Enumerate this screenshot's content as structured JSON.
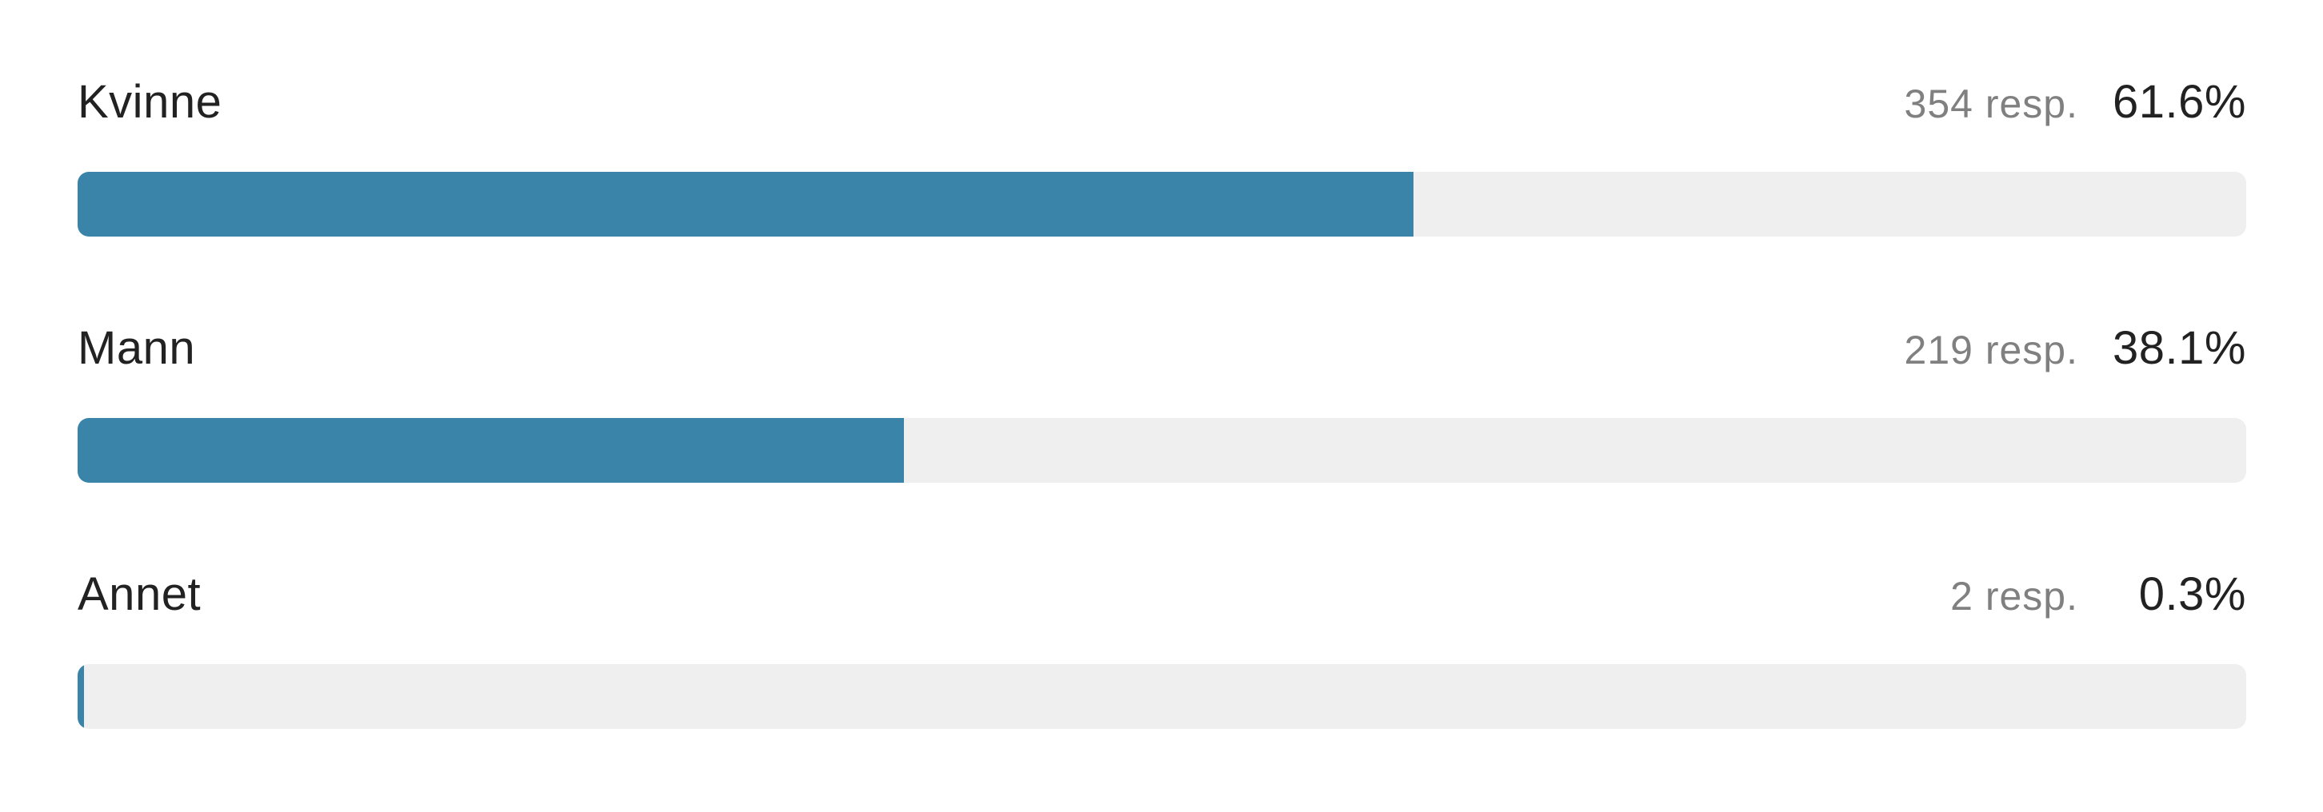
{
  "chart_data": {
    "type": "bar",
    "orientation": "horizontal",
    "categories": [
      "Kvinne",
      "Mann",
      "Annet"
    ],
    "counts_label": [
      "354 resp.",
      "219 resp.",
      "2 resp."
    ],
    "percent_label": [
      "61.6%",
      "38.1%",
      "0.3%"
    ],
    "values": [
      61.6,
      38.1,
      0.3
    ],
    "xlim": [
      0,
      100
    ],
    "bar_color": "#3a84aa",
    "track_color": "#efefef"
  }
}
